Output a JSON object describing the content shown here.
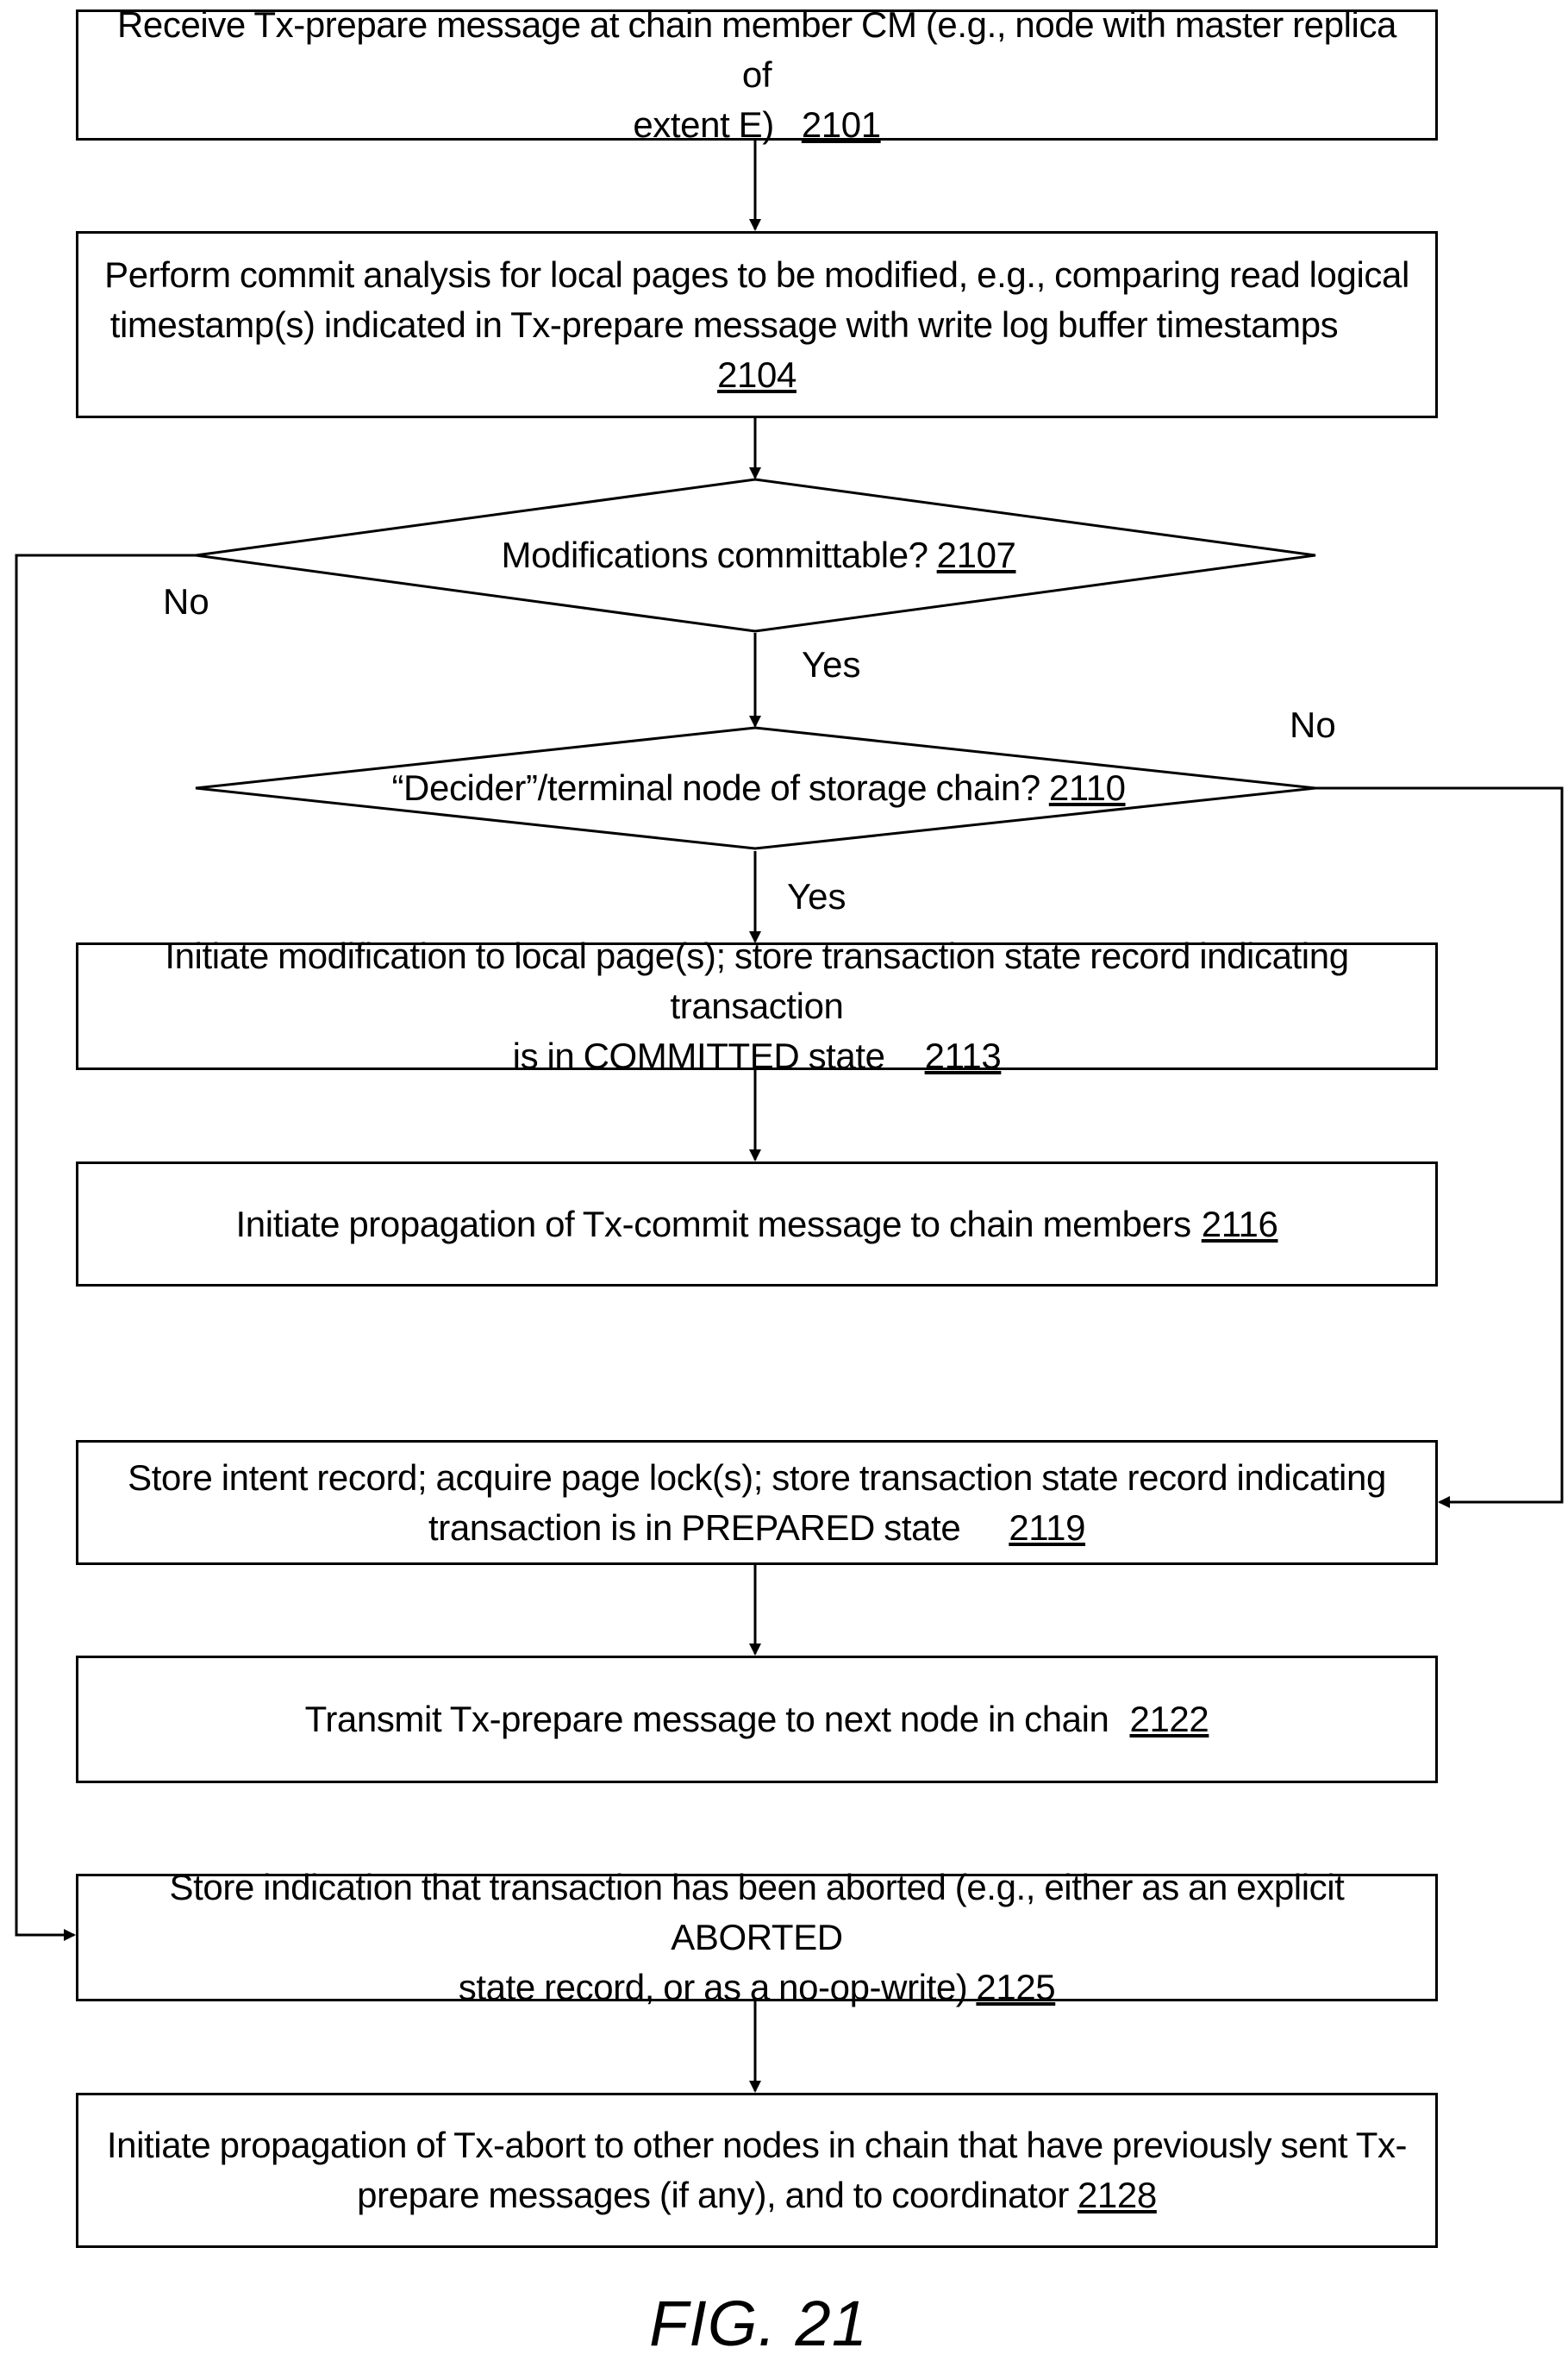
{
  "steps": {
    "s2101": {
      "text_a": "Receive Tx-prepare message  at chain member CM (e.g., node with master replica of",
      "text_b": "extent E)",
      "ref": "2101"
    },
    "s2104": {
      "text_a": "Perform commit analysis for local pages to be modified, e.g., comparing read logical",
      "text_b": "timestamp(s) indicated in Tx-prepare message with write log buffer timestamps",
      "ref": "2104"
    },
    "s2113": {
      "text_a": "Initiate modification to local page(s); store transaction state record indicating transaction",
      "text_b": "is in COMMITTED state",
      "ref": "2113"
    },
    "s2116": {
      "text": "Initiate propagation of Tx-commit message to chain members",
      "ref": "2116"
    },
    "s2119": {
      "text_a": "Store intent record; acquire page lock(s); store transaction state record indicating",
      "text_b": "transaction is in PREPARED state",
      "ref": "2119"
    },
    "s2122": {
      "text": "Transmit Tx-prepare message to next node in chain",
      "ref": "2122"
    },
    "s2125": {
      "text_a": "Store indication that transaction has been aborted (e.g., either as an explicit ABORTED",
      "text_b": "state record, or as a no-op-write)",
      "ref": "2125"
    },
    "s2128": {
      "text_a": "Initiate propagation of Tx-abort to other nodes in chain that have previously sent Tx-",
      "text_b": "prepare messages (if any), and to coordinator",
      "ref": "2128"
    }
  },
  "decisions": {
    "d2107": {
      "text": "Modifications committable?",
      "ref": "2107",
      "no_label": "No",
      "yes_label": "Yes"
    },
    "d2110": {
      "text": "“Decider”/terminal node of storage chain?",
      "ref": "2110",
      "no_label": "No",
      "yes_label": "Yes"
    }
  },
  "figure_label": "FIG. 21",
  "colors": {
    "line": "#000000",
    "background": "#ffffff"
  }
}
